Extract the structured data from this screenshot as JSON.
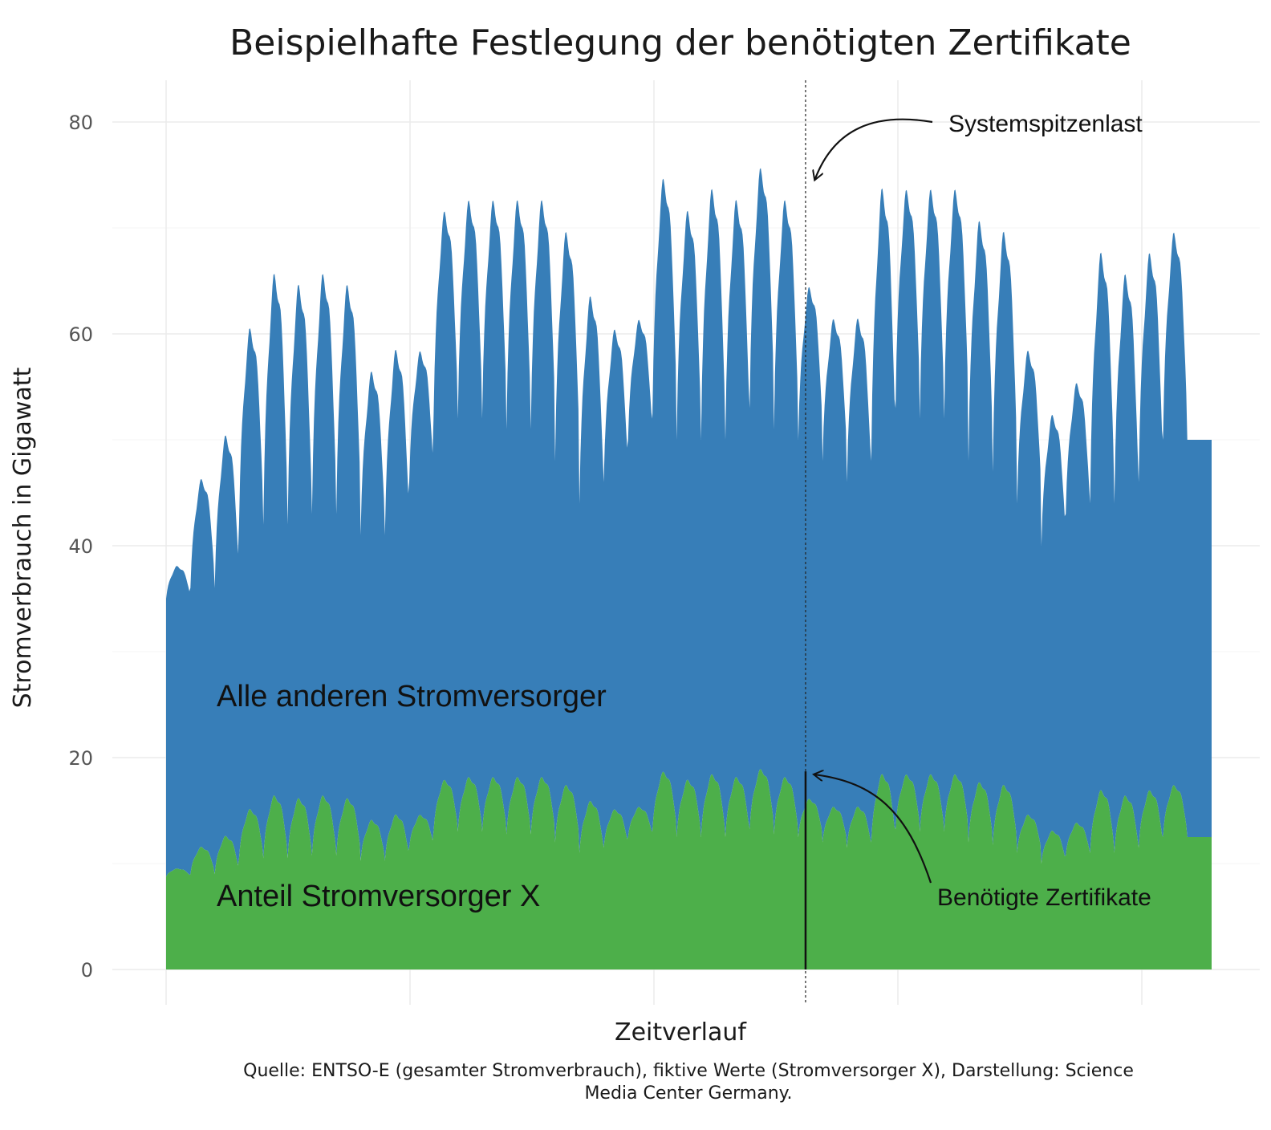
{
  "chart_data": {
    "type": "area",
    "title": "Beispielhafte Festlegung der benötigten Zertifikate",
    "xlabel": "Zeitverlauf",
    "ylabel": "Stromverbrauch in Gigawatt",
    "ylim": [
      0,
      85
    ],
    "xlim": [
      0,
      43
    ],
    "y_ticks": [
      "0",
      "20",
      "40",
      "60",
      "80"
    ],
    "grid": true,
    "stacked": true,
    "series": [
      {
        "name": "Anteil Stromversorger X",
        "color": "#4daf4a",
        "share_of_total": 0.25,
        "note": "stacked bottom area, 25% of total consumption"
      },
      {
        "name": "Alle anderen Stromversorger",
        "color": "#377eb8",
        "note": "stacked top area, remainder up to total consumption"
      }
    ],
    "total_profile": {
      "x_unit": "days",
      "baseline": 38,
      "daily_peaks": [
        38,
        46,
        50,
        60,
        65,
        64,
        65,
        64,
        56,
        58,
        58,
        71,
        72,
        72,
        72,
        72,
        69,
        63,
        60,
        61,
        74,
        71,
        73,
        72,
        75,
        72,
        64,
        61,
        61,
        73,
        73,
        73,
        73,
        70,
        69,
        58,
        52,
        55,
        67,
        65,
        67,
        69,
        50
      ],
      "daily_troughs": [
        35,
        36,
        36,
        42,
        42,
        42,
        43,
        43,
        41,
        41,
        46,
        52,
        52,
        52,
        51,
        51,
        48,
        44,
        46,
        50,
        52,
        50,
        50,
        50,
        53,
        51,
        50,
        48,
        46,
        48,
        53,
        52,
        52,
        48,
        47,
        44,
        40,
        43,
        44,
        44,
        46,
        50,
        50
      ]
    },
    "annotations": [
      {
        "text": "Systemspitzenlast",
        "target": "peak_total",
        "x": 26.3,
        "y": 74.8
      },
      {
        "text": "Benötigte Zertifikate",
        "target": "peak_share",
        "x": 26.3,
        "y": 18.7
      }
    ],
    "peak_x": 26.3,
    "series_labels": [
      {
        "text": "Alle anderen Stromversorger",
        "series": "Alle anderen Stromversorger"
      },
      {
        "text": "Anteil Stromversorger X",
        "series": "Anteil Stromversorger X"
      }
    ],
    "caption": [
      "Quelle: ENTSO-E (gesamter Stromverbrauch), fiktive Werte (Stromversorger X), Darstellung: Science",
      "Media Center Germany."
    ]
  }
}
